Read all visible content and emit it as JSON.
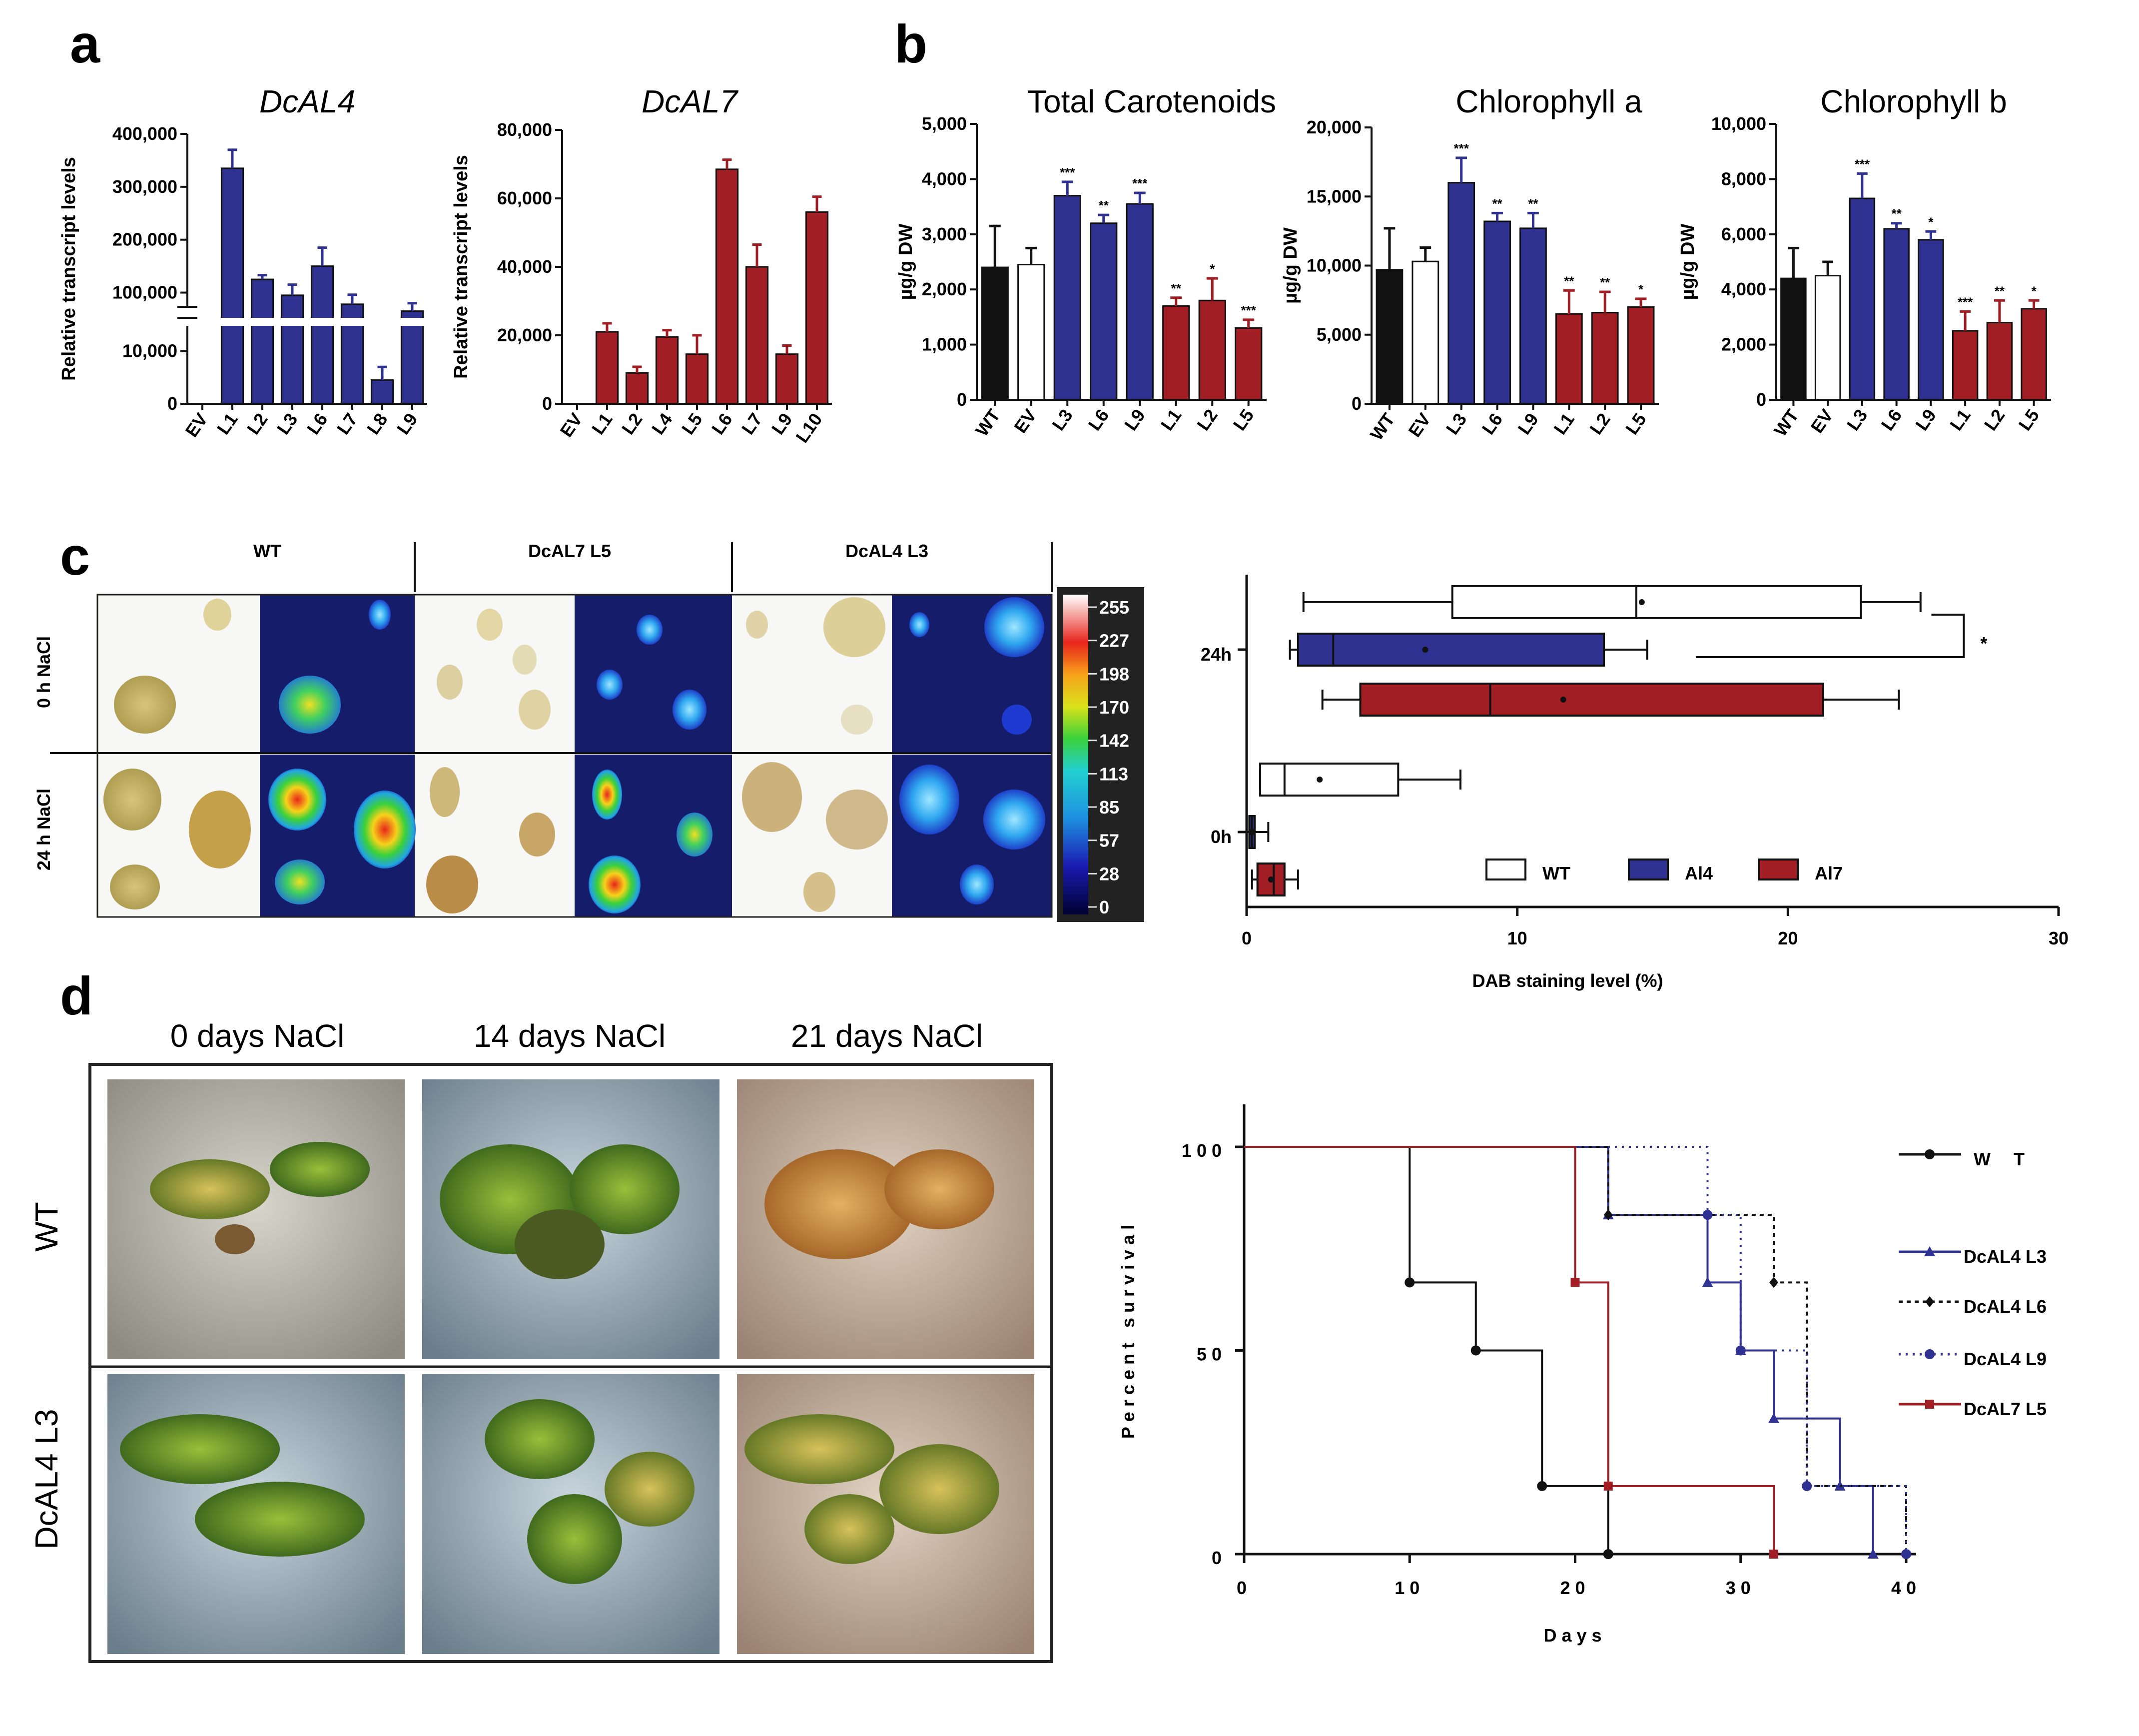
{
  "panels": {
    "a": "a",
    "b": "b",
    "c": "c",
    "d": "d"
  },
  "colors": {
    "blue": "#2e3190",
    "red": "#a11f24",
    "black": "#111111",
    "white": "#ffffff"
  },
  "chart_data": [
    {
      "id": "a1",
      "type": "bar",
      "title": "DcAL4",
      "ylabel": "Relative transcript levels",
      "axis_break": true,
      "categories": [
        "EV",
        "L1",
        "L2",
        "L3",
        "L6",
        "L7",
        "L8",
        "L9"
      ],
      "values": [
        0,
        335000,
        125000,
        95000,
        150000,
        78000,
        4500,
        65000
      ],
      "errors": [
        0,
        35000,
        8000,
        20000,
        35000,
        18000,
        2500,
        15000
      ],
      "yticks_upper": [
        "400,000",
        "300,000",
        "200,000",
        "100,000"
      ],
      "yticks_lower": [
        "10,000",
        "0"
      ],
      "color": "blue"
    },
    {
      "id": "a2",
      "type": "bar",
      "title": "DcAL7",
      "ylabel": "Relative transcript levels",
      "categories": [
        "EV",
        "L1",
        "L2",
        "L4",
        "L5",
        "L6",
        "L7",
        "L9",
        "L10"
      ],
      "values": [
        0,
        21000,
        9000,
        19500,
        14500,
        68500,
        40000,
        14500,
        56000
      ],
      "errors": [
        0,
        2500,
        1800,
        2000,
        5500,
        2800,
        6500,
        2500,
        4500
      ],
      "ylim": [
        0,
        80000
      ],
      "yticks": [
        "0",
        "20,000",
        "40,000",
        "60,000",
        "80,000"
      ],
      "color": "red"
    },
    {
      "id": "b1",
      "type": "bar",
      "title": "Total Carotenoids",
      "ylabel": "µg/g DW",
      "categories": [
        "WT",
        "EV",
        "L3",
        "L6",
        "L9",
        "L1",
        "L2",
        "L5"
      ],
      "values": [
        2400,
        2450,
        3700,
        3200,
        3550,
        1700,
        1800,
        1300
      ],
      "errors": [
        750,
        300,
        250,
        150,
        200,
        150,
        400,
        150
      ],
      "stars": [
        "",
        "",
        "***",
        "**",
        "***",
        "**",
        "*",
        "***"
      ],
      "ylim": [
        0,
        5000
      ],
      "yticks": [
        "0",
        "1,000",
        "2,000",
        "3,000",
        "4,000",
        "5,000"
      ],
      "colors": [
        "black",
        "white",
        "blue",
        "blue",
        "blue",
        "red",
        "red",
        "red"
      ]
    },
    {
      "id": "b2",
      "type": "bar",
      "title": "Chlorophyll a",
      "ylabel": "µg/g DW",
      "categories": [
        "WT",
        "EV",
        "L3",
        "L6",
        "L9",
        "L1",
        "L2",
        "L5"
      ],
      "values": [
        9700,
        10300,
        16000,
        13200,
        12700,
        6500,
        6600,
        7000
      ],
      "errors": [
        3000,
        1000,
        1800,
        600,
        1100,
        1700,
        1500,
        600
      ],
      "stars": [
        "",
        "",
        "***",
        "**",
        "**",
        "**",
        "**",
        "*"
      ],
      "ylim": [
        0,
        20000
      ],
      "yticks": [
        "0",
        "5,000",
        "10,000",
        "15,000",
        "20,000"
      ],
      "colors": [
        "black",
        "white",
        "blue",
        "blue",
        "blue",
        "red",
        "red",
        "red"
      ]
    },
    {
      "id": "b3",
      "type": "bar",
      "title": "Chlorophyll b",
      "ylabel": "µg/g DW",
      "categories": [
        "WT",
        "EV",
        "L3",
        "L6",
        "L9",
        "L1",
        "L2",
        "L5"
      ],
      "values": [
        4400,
        4500,
        7300,
        6200,
        5800,
        2500,
        2800,
        3300
      ],
      "errors": [
        1100,
        500,
        900,
        200,
        300,
        700,
        800,
        300
      ],
      "stars": [
        "",
        "",
        "***",
        "**",
        "*",
        "***",
        "**",
        "*"
      ],
      "ylim": [
        0,
        10000
      ],
      "yticks": [
        "0",
        "2,000",
        "4,000",
        "6,000",
        "8,000",
        "10,000"
      ],
      "colors": [
        "black",
        "white",
        "blue",
        "blue",
        "blue",
        "red",
        "red",
        "red"
      ]
    },
    {
      "id": "c",
      "type": "box",
      "xlabel": "DAB staining level (%)",
      "xlim": [
        0,
        30
      ],
      "xticks": [
        "0",
        "10",
        "20",
        "30"
      ],
      "groups": [
        "24h",
        "0h"
      ],
      "boxes": [
        {
          "group": "24h",
          "series": "WT",
          "whisker_low": 2.1,
          "q1": 7.6,
          "median": 14.4,
          "q3": 22.7,
          "whisker_high": 24.9,
          "mean": 14.6
        },
        {
          "group": "24h",
          "series": "Al4",
          "whisker_low": 1.6,
          "q1": 1.9,
          "median": 3.2,
          "q3": 13.2,
          "whisker_high": 14.8,
          "mean": 6.6
        },
        {
          "group": "24h",
          "series": "Al7",
          "whisker_low": 2.8,
          "q1": 4.2,
          "median": 9.0,
          "q3": 21.3,
          "whisker_high": 24.1,
          "mean": 11.7
        },
        {
          "group": "0h",
          "series": "WT",
          "whisker_low": 0.5,
          "q1": 0.5,
          "median": 1.4,
          "q3": 5.6,
          "whisker_high": 7.9,
          "mean": 2.7
        },
        {
          "group": "0h",
          "series": "Al4",
          "whisker_low": 0.0,
          "q1": 0.1,
          "median": 0.2,
          "q3": 0.3,
          "whisker_high": 0.8,
          "mean": 0.2
        },
        {
          "group": "0h",
          "series": "Al7",
          "whisker_low": 0.2,
          "q1": 0.4,
          "median": 1.0,
          "q3": 1.4,
          "whisker_high": 1.9,
          "mean": 0.9
        }
      ],
      "legend": [
        {
          "label": "WT",
          "color": "white"
        },
        {
          "label": "Al4",
          "color": "blue"
        },
        {
          "label": "Al7",
          "color": "red"
        }
      ],
      "significance": "*"
    },
    {
      "id": "d",
      "type": "line",
      "subtype": "survival",
      "xlabel": "Days",
      "ylabel": "Percent survival",
      "xlim": [
        0,
        40
      ],
      "ylim": [
        0,
        100
      ],
      "xticks": [
        "0",
        "10",
        "20",
        "30",
        "40"
      ],
      "yticks": [
        "0",
        "50",
        "100"
      ],
      "series": [
        {
          "name": "W T",
          "color": "#111111",
          "dash": "",
          "marker": "circle",
          "steps": [
            [
              0,
              100
            ],
            [
              10,
              66.7
            ],
            [
              14,
              50
            ],
            [
              18,
              16.7
            ],
            [
              22,
              0
            ]
          ]
        },
        {
          "name": "DcAL4 L3",
          "color": "#2e3190",
          "dash": "",
          "marker": "triangle",
          "steps": [
            [
              0,
              100
            ],
            [
              22,
              83.3
            ],
            [
              28,
              66.7
            ],
            [
              30,
              50
            ],
            [
              32,
              33.3
            ],
            [
              36,
              16.7
            ],
            [
              38,
              0
            ]
          ]
        },
        {
          "name": "DcAL4 L6",
          "color": "#111111",
          "dash": "8,8",
          "marker": "diamond",
          "steps": [
            [
              0,
              100
            ],
            [
              22,
              83.3
            ],
            [
              32,
              66.7
            ],
            [
              34,
              16.7
            ],
            [
              40,
              0
            ]
          ]
        },
        {
          "name": "DcAL4 L9",
          "color": "#2e3190",
          "dash": "4,10",
          "marker": "circle",
          "steps": [
            [
              0,
              100
            ],
            [
              28,
              83.3
            ],
            [
              30,
              50
            ],
            [
              34,
              16.7
            ],
            [
              40,
              0
            ]
          ]
        },
        {
          "name": "DcAL7 L5",
          "color": "#a11f24",
          "dash": "",
          "marker": "square",
          "steps": [
            [
              0,
              100
            ],
            [
              20,
              66.7
            ],
            [
              22,
              16.7
            ],
            [
              32,
              0
            ]
          ]
        }
      ]
    }
  ],
  "panel_c": {
    "columns": [
      "WT",
      "DcAL7 L5",
      "DcAL4 L3"
    ],
    "rows": [
      "0 h NaCl",
      "24 h NaCl"
    ],
    "colorbar_ticks": [
      "255",
      "227",
      "198",
      "170",
      "142",
      "113",
      "85",
      "57",
      "28",
      "0"
    ]
  },
  "panel_d": {
    "columns": [
      "0 days NaCl",
      "14 days NaCl",
      "21 days NaCl"
    ],
    "rows": [
      "WT",
      "DcAL4 L3"
    ]
  }
}
